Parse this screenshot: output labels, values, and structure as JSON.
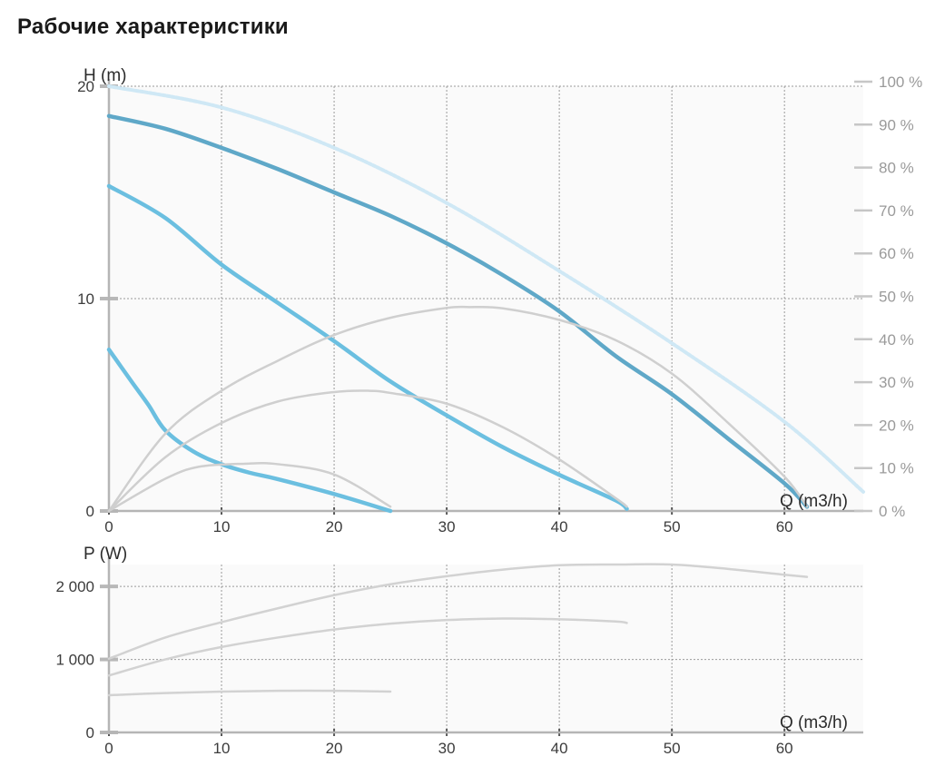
{
  "title": "Рабочие характеристики",
  "chart_data": [
    {
      "type": "line",
      "ylabel": "H (m)",
      "xlabel": "Q (m3/h)",
      "xlim": [
        0,
        67
      ],
      "ylim": [
        0,
        20
      ],
      "xticks": [
        0,
        10,
        20,
        30,
        40,
        50,
        60
      ],
      "yticks": [
        0,
        10,
        20
      ],
      "y2lim": [
        0,
        100
      ],
      "y2ticks": [
        "0 %",
        "10 %",
        "20 %",
        "30 %",
        "40 %",
        "50 %",
        "60 %",
        "70 %",
        "80 %",
        "90 %",
        "100 %"
      ],
      "grid": true,
      "series": [
        {
          "role": "head",
          "color": "#5fa8c8",
          "x": [
            0,
            5,
            10,
            15,
            20,
            25,
            30,
            35,
            40,
            45,
            50,
            55,
            60,
            62
          ],
          "y": [
            18.6,
            18.0,
            17.1,
            16.1,
            15.0,
            13.9,
            12.6,
            11.1,
            9.4,
            7.3,
            5.5,
            3.4,
            1.3,
            0.2
          ]
        },
        {
          "role": "head",
          "color": "#6bbfe0",
          "x": [
            0,
            5,
            10,
            15,
            20,
            25,
            30,
            35,
            40,
            45,
            46
          ],
          "y": [
            15.3,
            13.8,
            11.6,
            9.8,
            8.0,
            6.1,
            4.5,
            3.0,
            1.7,
            0.5,
            0.1
          ]
        },
        {
          "role": "head",
          "color": "#6bbfe0",
          "x": [
            0,
            2,
            3.5,
            5,
            7.5,
            10,
            12.5,
            15,
            20,
            25
          ],
          "y": [
            7.6,
            6.1,
            5.0,
            3.8,
            2.8,
            2.2,
            1.8,
            1.5,
            0.8,
            0.0
          ]
        },
        {
          "role": "max-head",
          "color": "#cfe8f5",
          "x": [
            0,
            10,
            20,
            30,
            40,
            50,
            60,
            67
          ],
          "y": [
            20.0,
            19.0,
            17.1,
            14.5,
            11.3,
            7.9,
            4.2,
            0.9
          ]
        },
        {
          "role": "efficiency",
          "color": "#cfcfcf",
          "x": [
            0,
            5,
            10,
            15,
            20,
            25,
            30,
            32,
            35,
            40,
            45,
            50,
            55,
            60,
            62
          ],
          "y": [
            0,
            18,
            28,
            35,
            41,
            45,
            47.3,
            47.5,
            47.2,
            44.5,
            39.8,
            32,
            20.5,
            8,
            1
          ]
        },
        {
          "role": "efficiency",
          "color": "#cfcfcf",
          "x": [
            0,
            5,
            10,
            15,
            20,
            23,
            25,
            30,
            35,
            40,
            45,
            46
          ],
          "y": [
            0,
            12.5,
            20.5,
            25.5,
            27.7,
            28,
            27.5,
            25,
            19.5,
            12,
            3,
            1
          ]
        },
        {
          "role": "efficiency",
          "color": "#cfcfcf",
          "x": [
            0,
            5,
            8,
            12,
            15,
            20,
            25
          ],
          "y": [
            0,
            7.5,
            10.3,
            11,
            10.9,
            8.5,
            1
          ]
        }
      ]
    },
    {
      "type": "line",
      "ylabel": "P (W)",
      "xlabel": "Q (m3/h)",
      "xlim": [
        0,
        67
      ],
      "ylim": [
        0,
        2300
      ],
      "xticks": [
        0,
        10,
        20,
        30,
        40,
        50,
        60
      ],
      "yticks": [
        0,
        1000,
        2000
      ],
      "ytick_labels": [
        "0",
        "1 000",
        "2 000"
      ],
      "grid": true,
      "series": [
        {
          "role": "power",
          "color": "#d2d2d2",
          "x": [
            0,
            5,
            10,
            15,
            20,
            25,
            30,
            35,
            40,
            45,
            50,
            55,
            60,
            62
          ],
          "y": [
            1010,
            1300,
            1510,
            1700,
            1880,
            2030,
            2140,
            2230,
            2290,
            2300,
            2300,
            2240,
            2160,
            2130
          ]
        },
        {
          "role": "power",
          "color": "#d2d2d2",
          "x": [
            0,
            5,
            10,
            15,
            20,
            25,
            30,
            35,
            40,
            45,
            46
          ],
          "y": [
            780,
            1000,
            1170,
            1300,
            1410,
            1490,
            1540,
            1560,
            1550,
            1520,
            1500
          ]
        },
        {
          "role": "power",
          "color": "#d2d2d2",
          "x": [
            0,
            5,
            10,
            15,
            20,
            25
          ],
          "y": [
            510,
            540,
            560,
            570,
            570,
            560
          ]
        }
      ]
    }
  ]
}
